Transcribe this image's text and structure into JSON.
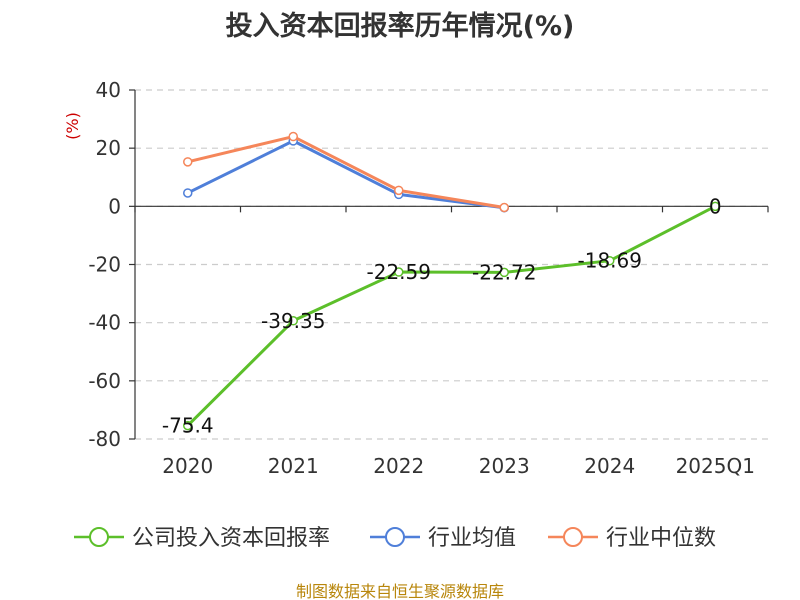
{
  "title": "投入资本回报率历年情况(%)",
  "footer": "制图数据来自恒生聚源数据库",
  "chart_data": {
    "type": "line",
    "title": "投入资本回报率历年情况(%)",
    "ylabel": "(%)",
    "xlabel": "",
    "categories": [
      "2020",
      "2021",
      "2022",
      "2023",
      "2024",
      "2025Q1"
    ],
    "ylim": [
      -80,
      40
    ],
    "yticks": [
      40,
      20,
      0,
      -20,
      -40,
      -60,
      -80
    ],
    "grid": true,
    "legend_position": "bottom",
    "series": [
      {
        "name": "公司投入资本回报率",
        "color": "#5cbf2a",
        "values": [
          -75.4,
          -39.35,
          -22.59,
          -22.72,
          -18.69,
          0
        ],
        "labels": [
          "-75.4",
          "-39.35",
          "-22.59",
          "-22.72",
          "-18.69",
          "0"
        ]
      },
      {
        "name": "行业均值",
        "color": "#4f7fd9",
        "values": [
          4.6,
          22.5,
          4.1,
          -0.5,
          null,
          null
        ]
      },
      {
        "name": "行业中位数",
        "color": "#f5865a",
        "values": [
          15.3,
          24.0,
          5.5,
          -0.4,
          null,
          null
        ]
      }
    ]
  }
}
